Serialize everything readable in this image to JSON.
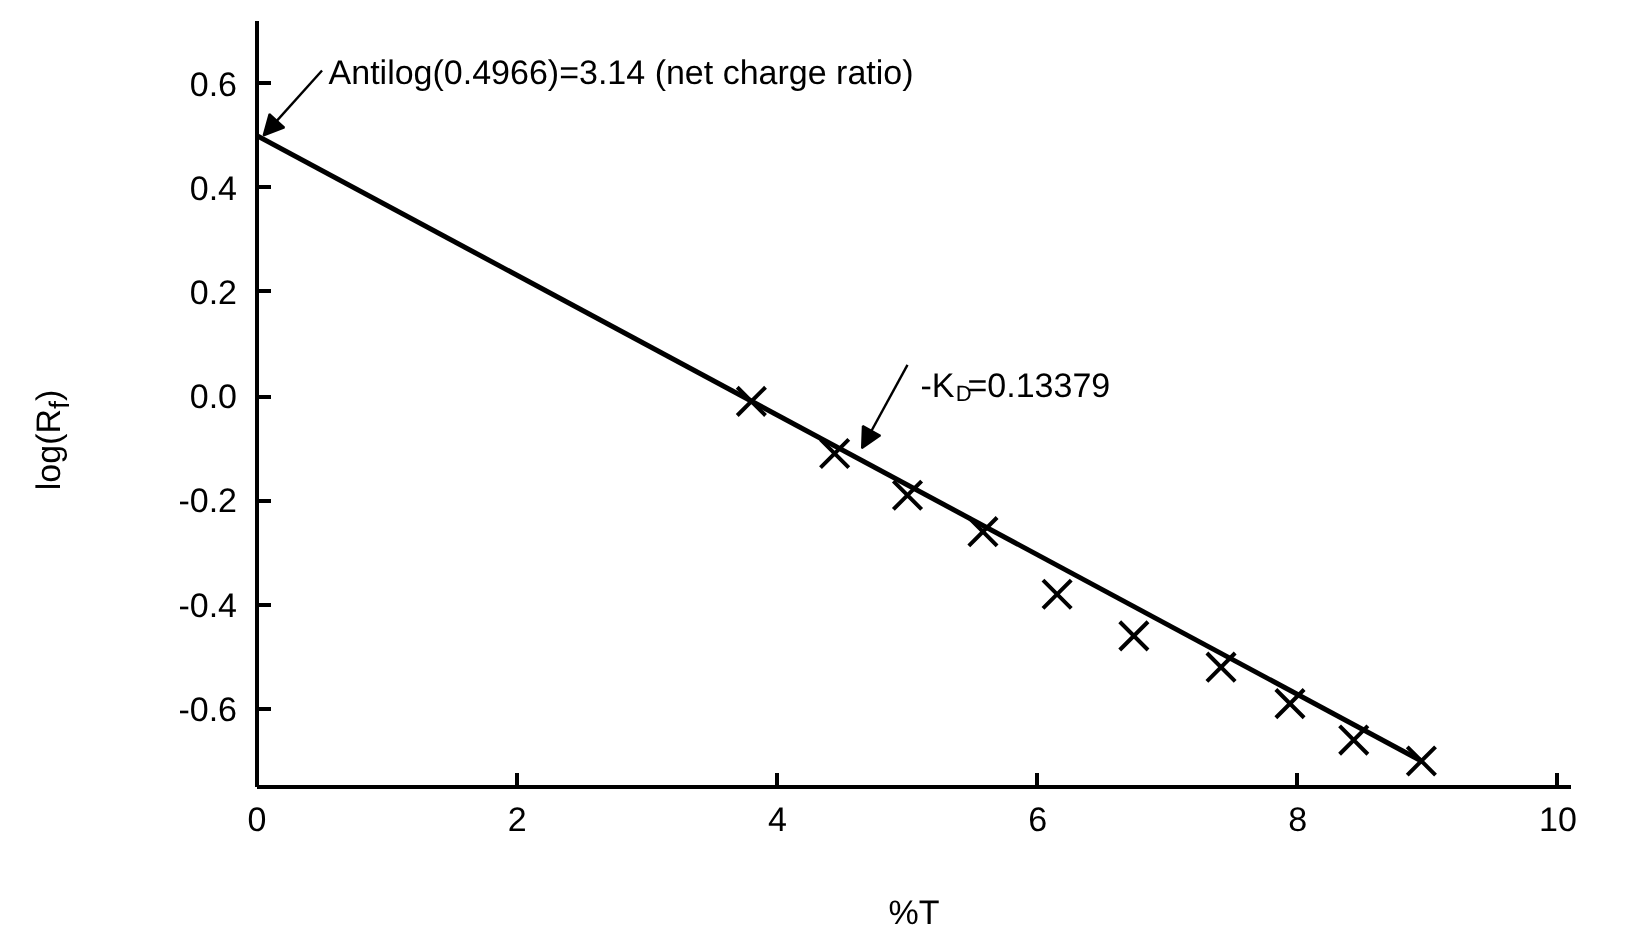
{
  "chart_data": {
    "type": "scatter",
    "xlabel": "%T",
    "ylabel": "log(R$_{f}$)",
    "xlim": [
      0,
      10.1
    ],
    "ylim": [
      -0.75,
      0.72
    ],
    "xticks": [
      0,
      2,
      4,
      6,
      8,
      10
    ],
    "yticks": [
      0.6,
      0.4,
      0.2,
      {
        "value": 0,
        "label": "0.0"
      },
      -0.2,
      -0.4,
      -0.6
    ],
    "grid": false,
    "marker": "cross",
    "series": [
      {
        "color": "#000000",
        "x": [
          3.8,
          4.44,
          5.0,
          5.58,
          6.15,
          6.74,
          7.41,
          7.94,
          8.43,
          8.95
        ],
        "values": [
          -0.01,
          -0.11,
          -0.19,
          -0.26,
          -0.38,
          -0.46,
          -0.52,
          -0.59,
          -0.66,
          -0.7
        ]
      },
      {
        "type": "line",
        "color": "#000000",
        "x": [
          0,
          8.95
        ],
        "values": [
          0.5,
          -0.7
        ],
        "marker": "none",
        "line_style": "solid"
      }
    ],
    "annotations": [
      {
        "text": "Antilog(0.4966)=3.14 (net charge ratio)",
        "x": 0.05,
        "y": 0.5
      },
      {
        "text": "-K$_{D}$=0.13379",
        "x": 4.65,
        "y": -0.1
      }
    ]
  }
}
